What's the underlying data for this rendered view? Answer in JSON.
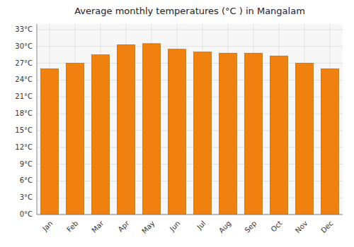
{
  "chart_data": {
    "type": "bar",
    "title": "Average monthly temperatures (°C ) in Mangalam",
    "categories": [
      "Jan",
      "Feb",
      "Mar",
      "Apr",
      "May",
      "Jun",
      "Jul",
      "Aug",
      "Sep",
      "Oct",
      "Nov",
      "Dec"
    ],
    "values": [
      26.0,
      27.0,
      28.5,
      30.3,
      30.5,
      29.5,
      29.0,
      28.8,
      28.8,
      28.3,
      27.0,
      26.0
    ],
    "color": "#F08010",
    "ylim": [
      0,
      34
    ],
    "yticks": [
      {
        "value": 0,
        "label": "0°C"
      },
      {
        "value": 3,
        "label": "3°C"
      },
      {
        "value": 6,
        "label": "6°C"
      },
      {
        "value": 9,
        "label": "9°C"
      },
      {
        "value": 12,
        "label": "12°C"
      },
      {
        "value": 15,
        "label": "15°C"
      },
      {
        "value": 18,
        "label": "18°C"
      },
      {
        "value": 21,
        "label": "21°C"
      },
      {
        "value": 24,
        "label": "24°C"
      },
      {
        "value": 27,
        "label": "27°C"
      },
      {
        "value": 30,
        "label": "30°C"
      },
      {
        "value": 33,
        "label": "33°C"
      }
    ],
    "grid": true
  }
}
